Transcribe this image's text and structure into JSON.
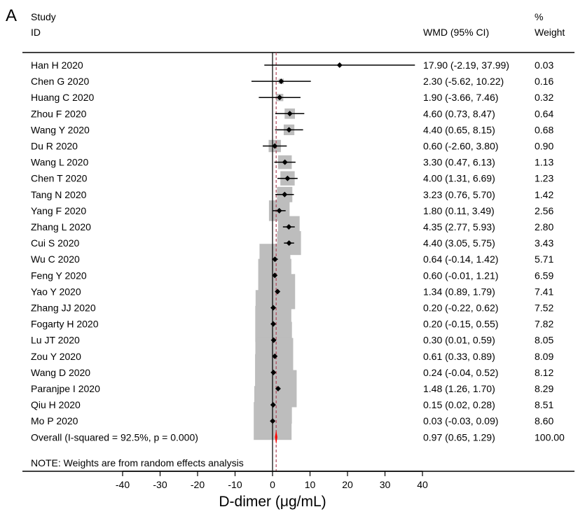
{
  "panel_label": "A",
  "chart_data": {
    "type": "forest",
    "header": {
      "study": "Study",
      "id": "ID",
      "effect": "WMD (95% CI)",
      "weight_pct": "%",
      "weight": "Weight"
    },
    "studies": [
      {
        "label": "Han H 2020",
        "est": 17.9,
        "lo": -2.19,
        "hi": 37.99,
        "ci_text": "17.90 (-2.19, 37.99)",
        "weight": 0.03,
        "weight_text": "0.03"
      },
      {
        "label": "Chen G 2020",
        "est": 2.3,
        "lo": -5.62,
        "hi": 10.22,
        "ci_text": "2.30 (-5.62, 10.22)",
        "weight": 0.16,
        "weight_text": "0.16"
      },
      {
        "label": "Huang C 2020",
        "est": 1.9,
        "lo": -3.66,
        "hi": 7.46,
        "ci_text": "1.90 (-3.66, 7.46)",
        "weight": 0.32,
        "weight_text": "0.32"
      },
      {
        "label": "Zhou F 2020",
        "est": 4.6,
        "lo": 0.73,
        "hi": 8.47,
        "ci_text": "4.60 (0.73, 8.47)",
        "weight": 0.64,
        "weight_text": "0.64"
      },
      {
        "label": "Wang Y 2020",
        "est": 4.4,
        "lo": 0.65,
        "hi": 8.15,
        "ci_text": "4.40 (0.65, 8.15)",
        "weight": 0.68,
        "weight_text": "0.68"
      },
      {
        "label": "Du R 2020",
        "est": 0.6,
        "lo": -2.6,
        "hi": 3.8,
        "ci_text": "0.60 (-2.60, 3.80)",
        "weight": 0.9,
        "weight_text": "0.90"
      },
      {
        "label": "Wang L 2020",
        "est": 3.3,
        "lo": 0.47,
        "hi": 6.13,
        "ci_text": "3.30 (0.47, 6.13)",
        "weight": 1.13,
        "weight_text": "1.13"
      },
      {
        "label": "Chen T 2020",
        "est": 4.0,
        "lo": 1.31,
        "hi": 6.69,
        "ci_text": "4.00 (1.31, 6.69)",
        "weight": 1.23,
        "weight_text": "1.23"
      },
      {
        "label": "Tang N 2020",
        "est": 3.23,
        "lo": 0.76,
        "hi": 5.7,
        "ci_text": "3.23 (0.76, 5.70)",
        "weight": 1.42,
        "weight_text": "1.42"
      },
      {
        "label": "Yang F 2020",
        "est": 1.8,
        "lo": 0.11,
        "hi": 3.49,
        "ci_text": "1.80 (0.11, 3.49)",
        "weight": 2.56,
        "weight_text": "2.56"
      },
      {
        "label": "Zhang L 2020",
        "est": 4.35,
        "lo": 2.77,
        "hi": 5.93,
        "ci_text": "4.35 (2.77, 5.93)",
        "weight": 2.8,
        "weight_text": "2.80"
      },
      {
        "label": "Cui S 2020",
        "est": 4.4,
        "lo": 3.05,
        "hi": 5.75,
        "ci_text": "4.40 (3.05, 5.75)",
        "weight": 3.43,
        "weight_text": "3.43"
      },
      {
        "label": "Wu C 2020",
        "est": 0.64,
        "lo": -0.14,
        "hi": 1.42,
        "ci_text": "0.64 (-0.14, 1.42)",
        "weight": 5.71,
        "weight_text": "5.71"
      },
      {
        "label": "Feng Y 2020",
        "est": 0.6,
        "lo": -0.01,
        "hi": 1.21,
        "ci_text": "0.60 (-0.01, 1.21)",
        "weight": 6.59,
        "weight_text": "6.59"
      },
      {
        "label": "Yao Y 2020",
        "est": 1.34,
        "lo": 0.89,
        "hi": 1.79,
        "ci_text": "1.34 (0.89, 1.79)",
        "weight": 7.41,
        "weight_text": "7.41"
      },
      {
        "label": "Zhang JJ 2020",
        "est": 0.2,
        "lo": -0.22,
        "hi": 0.62,
        "ci_text": "0.20 (-0.22, 0.62)",
        "weight": 7.52,
        "weight_text": "7.52"
      },
      {
        "label": "Fogarty H 2020",
        "est": 0.2,
        "lo": -0.15,
        "hi": 0.55,
        "ci_text": "0.20 (-0.15, 0.55)",
        "weight": 7.82,
        "weight_text": "7.82"
      },
      {
        "label": "Lu JT 2020",
        "est": 0.3,
        "lo": 0.01,
        "hi": 0.59,
        "ci_text": "0.30 (0.01, 0.59)",
        "weight": 8.05,
        "weight_text": "8.05"
      },
      {
        "label": "Zou Y 2020",
        "est": 0.61,
        "lo": 0.33,
        "hi": 0.89,
        "ci_text": "0.61 (0.33, 0.89)",
        "weight": 8.09,
        "weight_text": "8.09"
      },
      {
        "label": "Wang D 2020",
        "est": 0.24,
        "lo": -0.04,
        "hi": 0.52,
        "ci_text": "0.24 (-0.04, 0.52)",
        "weight": 8.12,
        "weight_text": "8.12"
      },
      {
        "label": "Paranjpe I 2020",
        "est": 1.48,
        "lo": 1.26,
        "hi": 1.7,
        "ci_text": "1.48 (1.26, 1.70)",
        "weight": 8.29,
        "weight_text": "8.29"
      },
      {
        "label": "Qiu H 2020",
        "est": 0.15,
        "lo": 0.02,
        "hi": 0.28,
        "ci_text": "0.15 (0.02, 0.28)",
        "weight": 8.51,
        "weight_text": "8.51"
      },
      {
        "label": "Mo P 2020",
        "est": 0.03,
        "lo": -0.03,
        "hi": 0.09,
        "ci_text": "0.03 (-0.03, 0.09)",
        "weight": 8.6,
        "weight_text": "8.60"
      }
    ],
    "overall": {
      "label": "Overall  (I-squared = 92.5%, p = 0.000)",
      "est": 0.97,
      "lo": 0.65,
      "hi": 1.29,
      "ci_text": "0.97 (0.65, 1.29)",
      "weight": 100.0,
      "weight_text": "100.00"
    },
    "note": "NOTE: Weights are from random effects analysis",
    "x_ticks": [
      -40,
      -30,
      -20,
      -10,
      0,
      10,
      20,
      30,
      40
    ],
    "xlim": [
      -40,
      40
    ],
    "xlabel": "D-dimer (μg/mL)",
    "null_line": 0,
    "colors": {
      "weight_box": "#bdbdbd",
      "point": "#000000",
      "overall_diamond": "#ff0000",
      "overall_line": "#b0455a"
    }
  }
}
